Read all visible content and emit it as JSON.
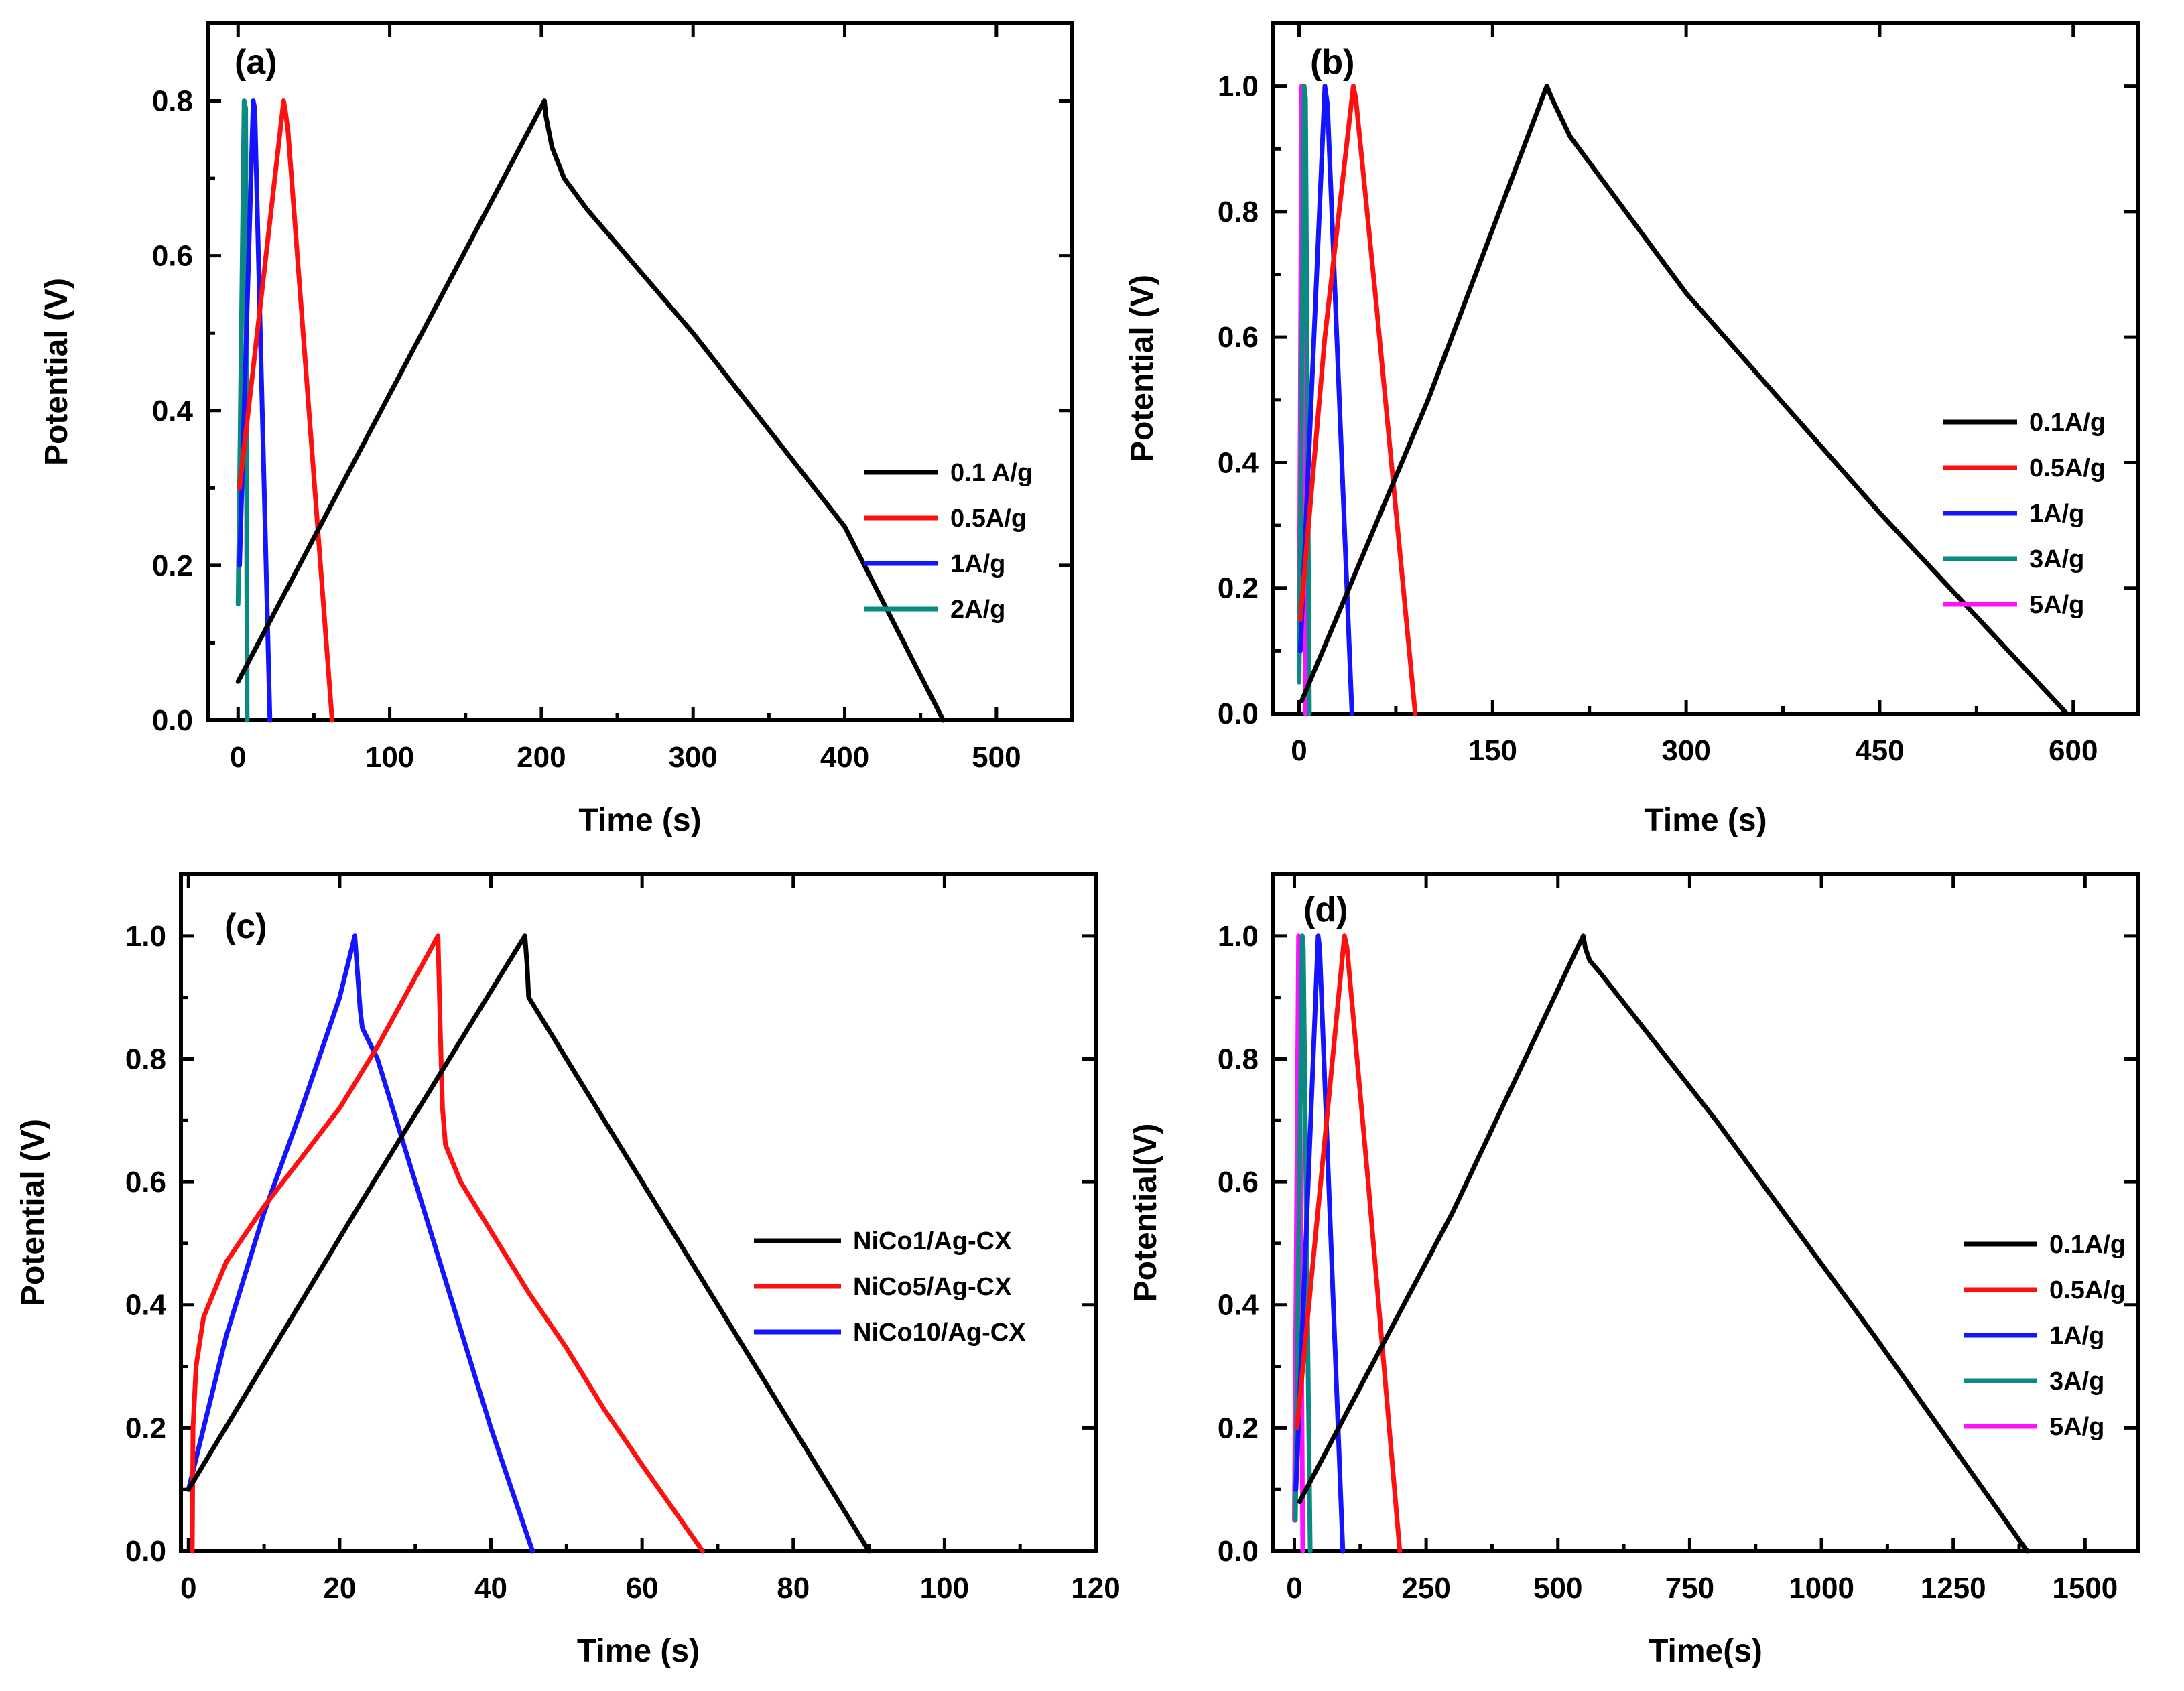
{
  "colors": {
    "black": "#000000",
    "red": "#ff1010",
    "blue": "#1414ff",
    "teal": "#0a8a82",
    "magenta": "#ff10ff"
  },
  "chart_data": [
    {
      "type": "line",
      "panel_label": "(a)",
      "xlabel": "Time (s)",
      "ylabel": "Potential (V)",
      "xlim": [
        -20,
        550
      ],
      "ylim": [
        0,
        0.9
      ],
      "xticks": [
        0,
        100,
        200,
        300,
        400,
        500
      ],
      "yticks": [
        0.0,
        0.2,
        0.4,
        0.6,
        0.8
      ],
      "xtick_labels": [
        "0",
        "100",
        "200",
        "300",
        "400",
        "500"
      ],
      "ytick_labels": [
        "0.0",
        "0.2",
        "0.4",
        "0.6",
        "0.8"
      ],
      "legend_position": "center-right",
      "series": [
        {
          "name": "0.1 A/g",
          "color": "black",
          "x": [
            0,
            202,
            203,
            207,
            215,
            230,
            300,
            400,
            465
          ],
          "y": [
            0.05,
            0.8,
            0.78,
            0.74,
            0.7,
            0.66,
            0.5,
            0.25,
            0.0
          ]
        },
        {
          "name": "0.5A/g",
          "color": "red",
          "x": [
            1,
            30,
            31,
            33,
            62
          ],
          "y": [
            0.3,
            0.8,
            0.79,
            0.76,
            0.0
          ]
        },
        {
          "name": "1A/g",
          "color": "blue",
          "x": [
            1,
            10,
            11,
            21
          ],
          "y": [
            0.2,
            0.8,
            0.79,
            0.0
          ]
        },
        {
          "name": "2A/g",
          "color": "teal",
          "x": [
            0,
            4,
            5,
            6
          ],
          "y": [
            0.15,
            0.8,
            0.79,
            0.0
          ]
        }
      ]
    },
    {
      "type": "line",
      "panel_label": "(b)",
      "xlabel": "Time (s)",
      "ylabel": "Potential (V)",
      "xlim": [
        -20,
        650
      ],
      "ylim": [
        0,
        1.1
      ],
      "xticks": [
        0,
        150,
        300,
        450,
        600
      ],
      "yticks": [
        0.0,
        0.2,
        0.4,
        0.6,
        0.8,
        1.0
      ],
      "xtick_labels": [
        "0",
        "150",
        "300",
        "450",
        "600"
      ],
      "ytick_labels": [
        "0.0",
        "0.2",
        "0.4",
        "0.6",
        "0.8",
        "1.0"
      ],
      "legend_position": "center-right",
      "series": [
        {
          "name": "0.1A/g",
          "color": "black",
          "x": [
            2,
            100,
            192,
            196,
            210,
            300,
            450,
            595
          ],
          "y": [
            0.02,
            0.5,
            1.0,
            0.98,
            0.92,
            0.67,
            0.32,
            0.0
          ]
        },
        {
          "name": "0.5A/g",
          "color": "red",
          "x": [
            1,
            20,
            42,
            44,
            60,
            90
          ],
          "y": [
            0.15,
            0.6,
            1.0,
            0.98,
            0.65,
            0.0
          ]
        },
        {
          "name": "1A/g",
          "color": "blue",
          "x": [
            1,
            20,
            22,
            41
          ],
          "y": [
            0.1,
            1.0,
            0.97,
            0.0
          ]
        },
        {
          "name": "3A/g",
          "color": "teal",
          "x": [
            0,
            4,
            5,
            8
          ],
          "y": [
            0.05,
            1.0,
            0.98,
            0.0
          ]
        },
        {
          "name": "5A/g",
          "color": "magenta",
          "x": [
            0,
            2,
            3,
            5
          ],
          "y": [
            0.05,
            1.0,
            0.98,
            0.0
          ]
        }
      ]
    },
    {
      "type": "line",
      "panel_label": "(c)",
      "xlabel": "Time (s)",
      "ylabel": "Potential (V)",
      "xlim": [
        -1,
        120
      ],
      "ylim": [
        0,
        1.1
      ],
      "xticks": [
        0,
        20,
        40,
        60,
        80,
        100,
        120
      ],
      "yticks": [
        0.0,
        0.2,
        0.4,
        0.6,
        0.8,
        1.0
      ],
      "xtick_labels": [
        "0",
        "20",
        "40",
        "60",
        "80",
        "100",
        "120"
      ],
      "ytick_labels": [
        "0.0",
        "0.2",
        "0.4",
        "0.6",
        "0.8",
        "1.0"
      ],
      "legend_position": "center-right",
      "series": [
        {
          "name": "NiCo1/Ag-CX",
          "color": "black",
          "x": [
            0,
            22,
            44.5,
            44.8,
            45,
            50,
            60,
            70,
            80,
            90
          ],
          "y": [
            0.1,
            0.55,
            1.0,
            0.95,
            0.9,
            0.8,
            0.6,
            0.4,
            0.2,
            0.0
          ]
        },
        {
          "name": "NiCo5/Ag-CX",
          "color": "red",
          "x": [
            0.5,
            0.6,
            1,
            2,
            5,
            10,
            15,
            20,
            25,
            33,
            33.3,
            33.6,
            34,
            36,
            40,
            45,
            50,
            55,
            60,
            68
          ],
          "y": [
            0.0,
            0.2,
            0.3,
            0.38,
            0.47,
            0.56,
            0.64,
            0.72,
            0.82,
            1.0,
            0.85,
            0.72,
            0.66,
            0.6,
            0.52,
            0.42,
            0.33,
            0.23,
            0.14,
            0.0
          ]
        },
        {
          "name": "NiCo10/Ag-CX",
          "color": "blue",
          "x": [
            0,
            5,
            10,
            15,
            20,
            22,
            22.3,
            22.7,
            23,
            25,
            30,
            35,
            40,
            45.5
          ],
          "y": [
            0.1,
            0.35,
            0.55,
            0.72,
            0.9,
            1.0,
            0.95,
            0.88,
            0.85,
            0.8,
            0.6,
            0.4,
            0.2,
            0.0
          ]
        }
      ]
    },
    {
      "type": "line",
      "panel_label": "(d)",
      "xlabel": "Time(s)",
      "ylabel": "Potential(V)",
      "xlim": [
        -40,
        1600
      ],
      "ylim": [
        0,
        1.1
      ],
      "xticks": [
        0,
        250,
        500,
        750,
        1000,
        1250,
        1500
      ],
      "yticks": [
        0.0,
        0.2,
        0.4,
        0.6,
        0.8,
        1.0
      ],
      "xtick_labels": [
        "0",
        "250",
        "500",
        "750",
        "1000",
        "1250",
        "1500"
      ],
      "ytick_labels": [
        "0.0",
        "0.2",
        "0.4",
        "0.6",
        "0.8",
        "1.0"
      ],
      "legend_position": "center-right",
      "series": [
        {
          "name": "0.1A/g",
          "color": "black",
          "x": [
            10,
            300,
            548,
            552,
            560,
            580,
            800,
            1100,
            1390
          ],
          "y": [
            0.08,
            0.55,
            1.0,
            0.98,
            0.96,
            0.94,
            0.7,
            0.35,
            0.0
          ]
        },
        {
          "name": "0.5A/g",
          "color": "red",
          "x": [
            5,
            50,
            95,
            100,
            140,
            200
          ],
          "y": [
            0.2,
            0.6,
            1.0,
            0.98,
            0.6,
            0.0
          ]
        },
        {
          "name": "1A/g",
          "color": "blue",
          "x": [
            3,
            45,
            48,
            92
          ],
          "y": [
            0.1,
            1.0,
            0.98,
            0.0
          ]
        },
        {
          "name": "3A/g",
          "color": "teal",
          "x": [
            2,
            15,
            17,
            30
          ],
          "y": [
            0.05,
            1.0,
            0.98,
            0.0
          ]
        },
        {
          "name": "5A/g",
          "color": "magenta",
          "x": [
            0,
            8,
            9,
            16
          ],
          "y": [
            0.05,
            1.0,
            0.98,
            0.0
          ]
        }
      ]
    }
  ]
}
